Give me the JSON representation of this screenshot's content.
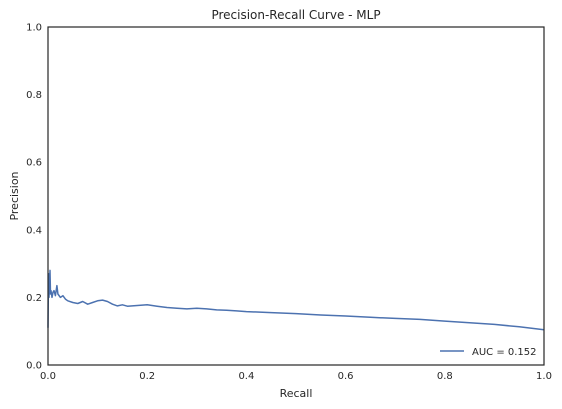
{
  "chart_data": {
    "type": "line",
    "title": "Precision-Recall Curve - MLP",
    "xlabel": "Recall",
    "ylabel": "Precision",
    "xlim": [
      0,
      1
    ],
    "ylim": [
      0,
      1
    ],
    "xticks": [
      "0.0",
      "0.2",
      "0.4",
      "0.6",
      "0.8",
      "1.0"
    ],
    "yticks": [
      "0.0",
      "0.2",
      "0.4",
      "0.6",
      "0.8",
      "1.0"
    ],
    "grid": false,
    "legend_position": "lower-right",
    "series": [
      {
        "name": "AUC = 0.152",
        "color": "#4c72b0",
        "x": [
          0.0,
          0.001,
          0.002,
          0.003,
          0.004,
          0.005,
          0.006,
          0.008,
          0.01,
          0.012,
          0.015,
          0.018,
          0.02,
          0.025,
          0.03,
          0.035,
          0.04,
          0.05,
          0.06,
          0.07,
          0.08,
          0.09,
          0.1,
          0.11,
          0.12,
          0.13,
          0.14,
          0.15,
          0.16,
          0.18,
          0.2,
          0.22,
          0.24,
          0.26,
          0.28,
          0.3,
          0.32,
          0.34,
          0.36,
          0.38,
          0.4,
          0.45,
          0.5,
          0.55,
          0.6,
          0.65,
          0.7,
          0.75,
          0.8,
          0.85,
          0.9,
          0.95,
          1.0
        ],
        "y": [
          0.11,
          0.27,
          0.2,
          0.24,
          0.28,
          0.21,
          0.22,
          0.2,
          0.215,
          0.22,
          0.205,
          0.235,
          0.21,
          0.2,
          0.205,
          0.195,
          0.19,
          0.185,
          0.182,
          0.188,
          0.18,
          0.185,
          0.19,
          0.192,
          0.188,
          0.18,
          0.175,
          0.178,
          0.174,
          0.176,
          0.178,
          0.174,
          0.17,
          0.168,
          0.166,
          0.168,
          0.166,
          0.163,
          0.162,
          0.16,
          0.158,
          0.155,
          0.152,
          0.148,
          0.145,
          0.141,
          0.138,
          0.135,
          0.13,
          0.125,
          0.12,
          0.113,
          0.104
        ]
      }
    ]
  }
}
